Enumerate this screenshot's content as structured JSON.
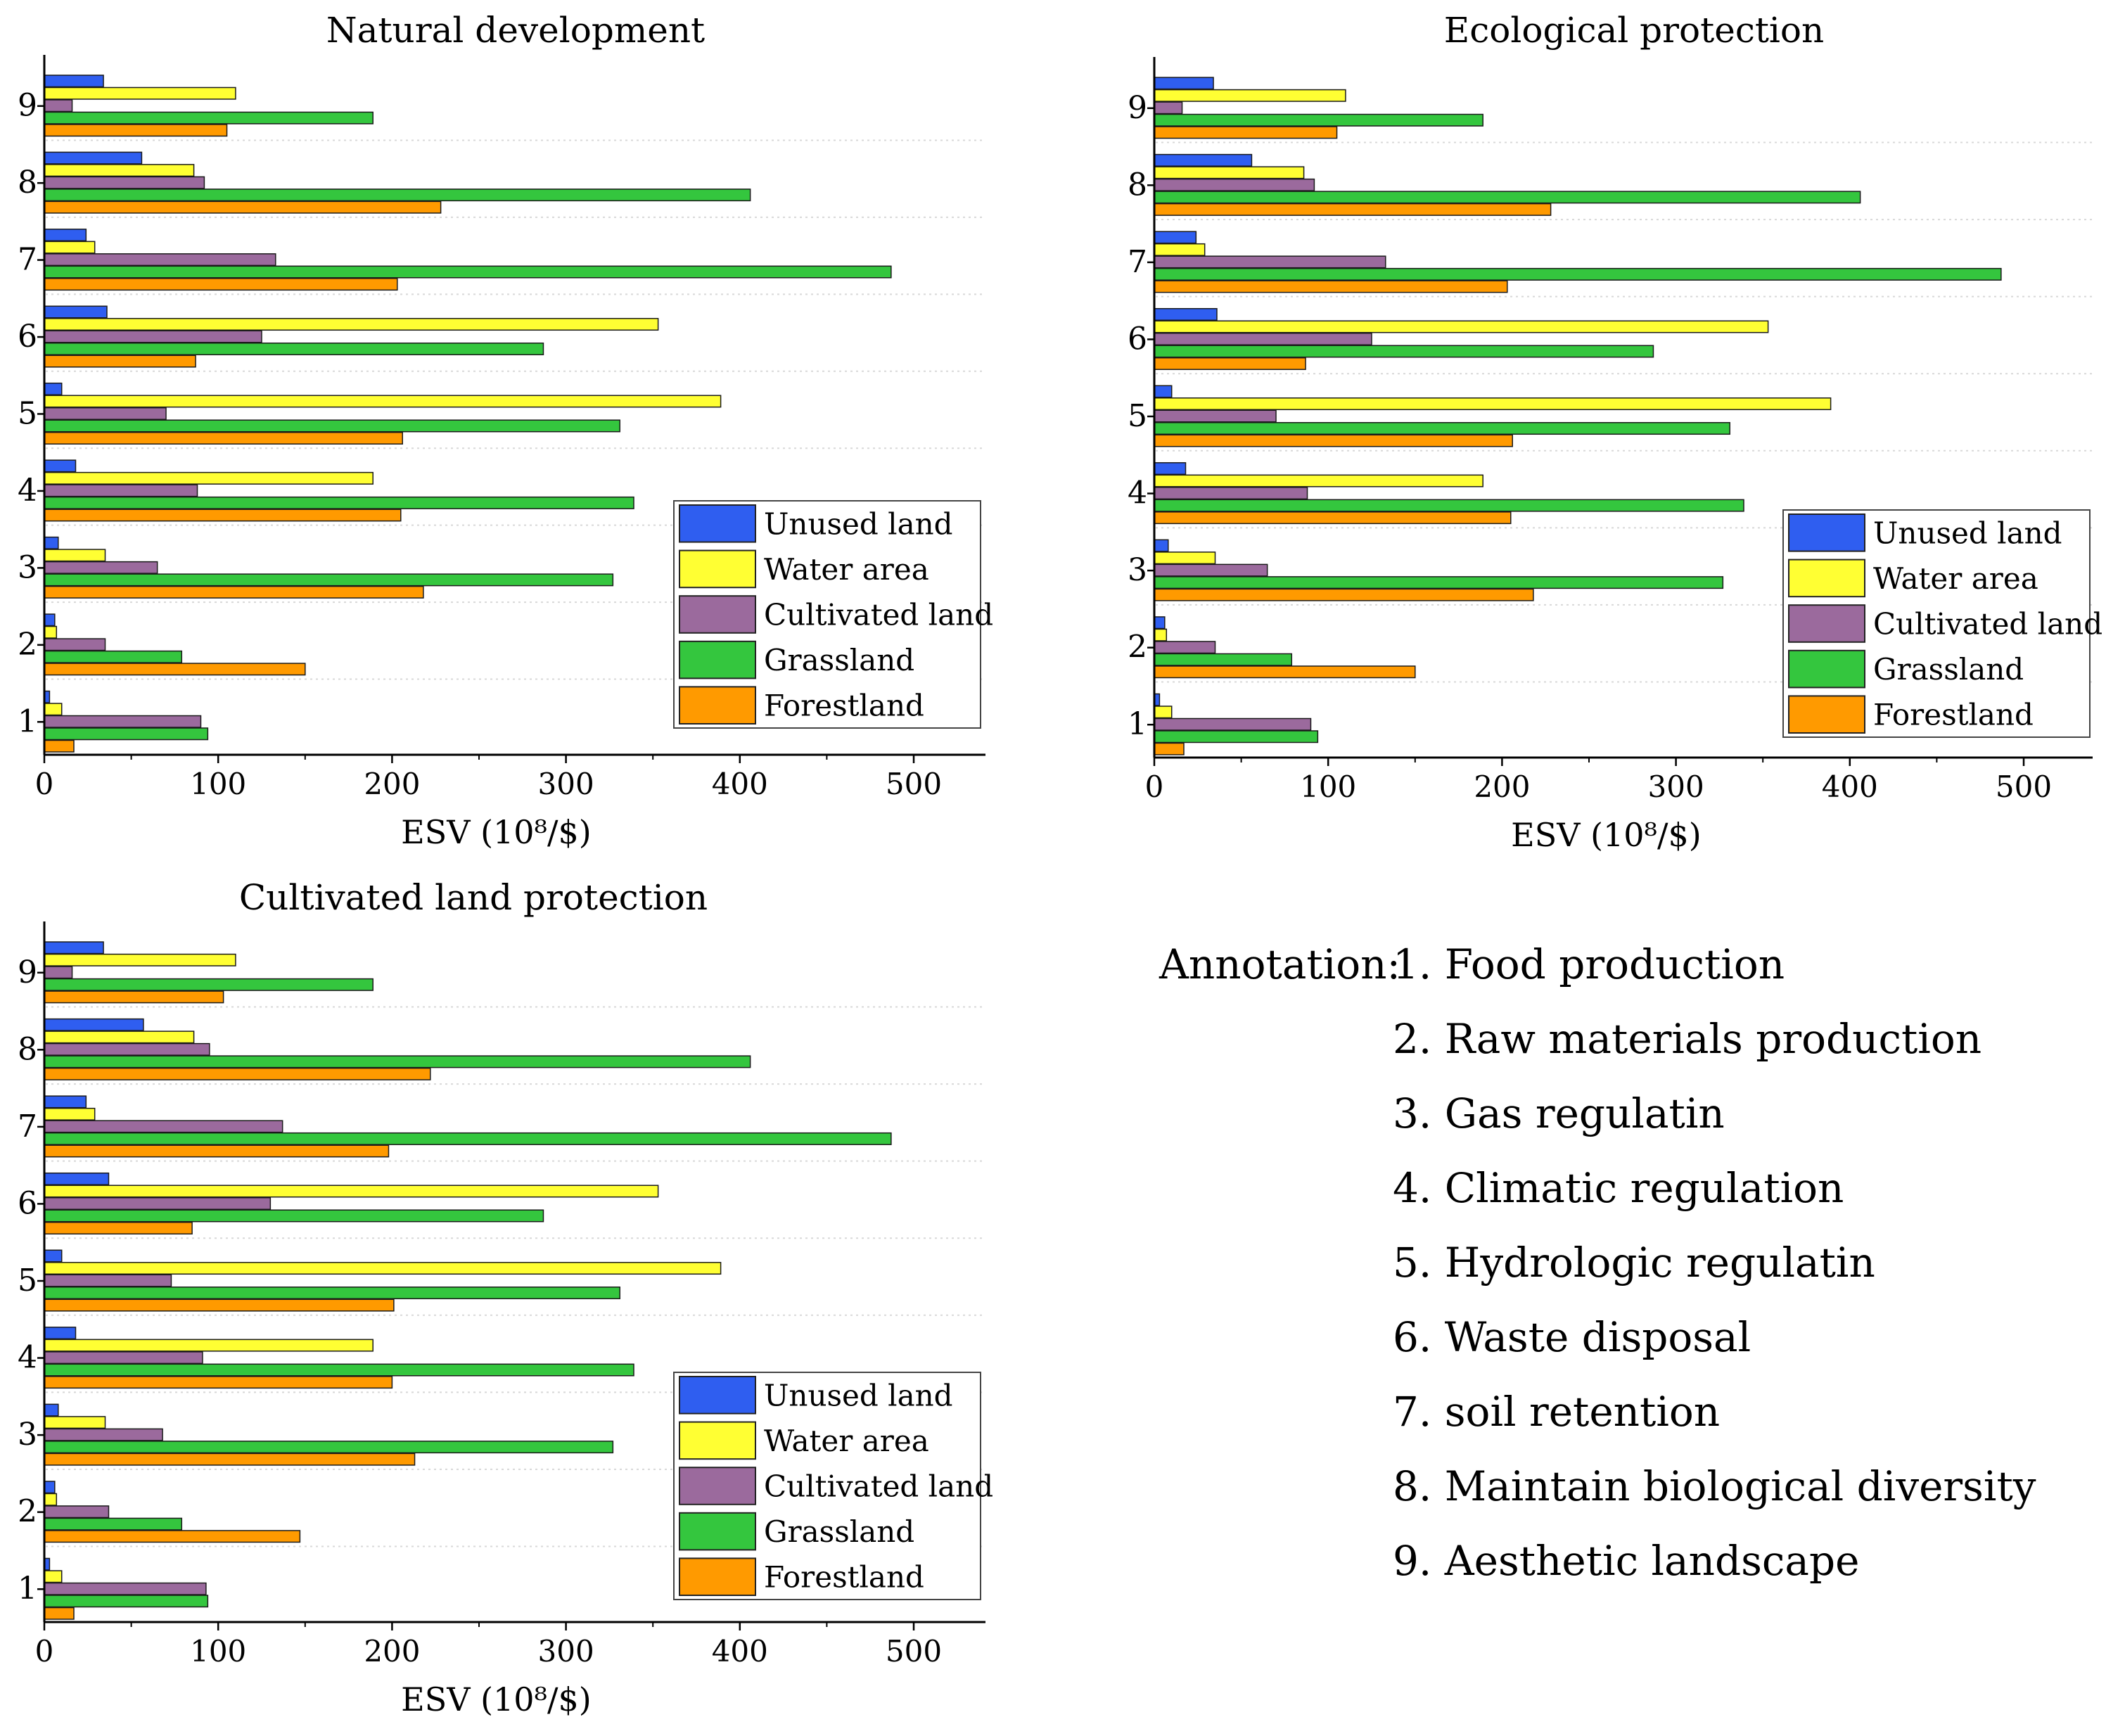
{
  "colors": {
    "Unused land": "#2f5ef0",
    "Water area": "#ffff33",
    "Cultivated land": "#9b6a9d",
    "Grassland": "#34c63e",
    "Forestland": "#ff9a00"
  },
  "chart_data": [
    {
      "type": "bar",
      "orientation": "horizontal",
      "title": "Natural development",
      "xlabel": "ESV (10⁸/$)",
      "xlim": [
        0,
        540
      ],
      "xticks": [
        0,
        100,
        200,
        300,
        400,
        500
      ],
      "legend_position": "right, lower-middle",
      "categories": [
        "1",
        "2",
        "3",
        "4",
        "5",
        "6",
        "7",
        "8",
        "9"
      ],
      "series": [
        {
          "name": "Unused land",
          "values": [
            3,
            6,
            8,
            18,
            10,
            36,
            24,
            56,
            34
          ]
        },
        {
          "name": "Water area",
          "values": [
            10,
            7,
            35,
            189,
            389,
            353,
            29,
            86,
            110
          ]
        },
        {
          "name": "Cultivated land",
          "values": [
            90,
            35,
            65,
            88,
            70,
            125,
            133,
            92,
            16
          ]
        },
        {
          "name": "Grassland",
          "values": [
            94,
            79,
            327,
            339,
            331,
            287,
            487,
            406,
            189
          ]
        },
        {
          "name": "Forestland",
          "values": [
            17,
            150,
            218,
            205,
            206,
            87,
            203,
            228,
            105
          ]
        }
      ]
    },
    {
      "type": "bar",
      "orientation": "horizontal",
      "title": "Ecological protection",
      "xlabel": "ESV (10⁸/$)",
      "xlim": [
        0,
        540
      ],
      "xticks": [
        0,
        100,
        200,
        300,
        400,
        500
      ],
      "legend_position": "right, lower",
      "categories": [
        "1",
        "2",
        "3",
        "4",
        "5",
        "6",
        "7",
        "8",
        "9"
      ],
      "series": [
        {
          "name": "Unused land",
          "values": [
            3,
            6,
            8,
            18,
            10,
            36,
            24,
            56,
            34
          ]
        },
        {
          "name": "Water area",
          "values": [
            10,
            7,
            35,
            189,
            389,
            353,
            29,
            86,
            110
          ]
        },
        {
          "name": "Cultivated land",
          "values": [
            90,
            35,
            65,
            88,
            70,
            125,
            133,
            92,
            16
          ]
        },
        {
          "name": "Grassland",
          "values": [
            94,
            79,
            327,
            339,
            331,
            287,
            487,
            406,
            189
          ]
        },
        {
          "name": "Forestland",
          "values": [
            17,
            150,
            218,
            205,
            206,
            87,
            203,
            228,
            105
          ]
        }
      ]
    },
    {
      "type": "bar",
      "orientation": "horizontal",
      "title": "Cultivated land protection",
      "xlabel": "ESV (10⁸/$)",
      "xlim": [
        0,
        540
      ],
      "xticks": [
        0,
        100,
        200,
        300,
        400,
        500
      ],
      "legend_position": "right, lower",
      "categories": [
        "1",
        "2",
        "3",
        "4",
        "5",
        "6",
        "7",
        "8",
        "9"
      ],
      "series": [
        {
          "name": "Unused land",
          "values": [
            3,
            6,
            8,
            18,
            10,
            37,
            24,
            57,
            34
          ]
        },
        {
          "name": "Water area",
          "values": [
            10,
            7,
            35,
            189,
            389,
            353,
            29,
            86,
            110
          ]
        },
        {
          "name": "Cultivated land",
          "values": [
            93,
            37,
            68,
            91,
            73,
            130,
            137,
            95,
            16
          ]
        },
        {
          "name": "Grassland",
          "values": [
            94,
            79,
            327,
            339,
            331,
            287,
            487,
            406,
            189
          ]
        },
        {
          "name": "Forestland",
          "values": [
            17,
            147,
            213,
            200,
            201,
            85,
            198,
            222,
            103
          ]
        }
      ]
    }
  ],
  "annotation": {
    "lead": "Annotation:",
    "items": [
      "1. Food production",
      "2. Raw materials production",
      "3. Gas regulatin",
      "4. Climatic regulation",
      "5. Hydrologic regulatin",
      "6. Waste disposal",
      "7. soil retention",
      "8. Maintain biological diversity",
      "9. Aesthetic landscape"
    ]
  }
}
